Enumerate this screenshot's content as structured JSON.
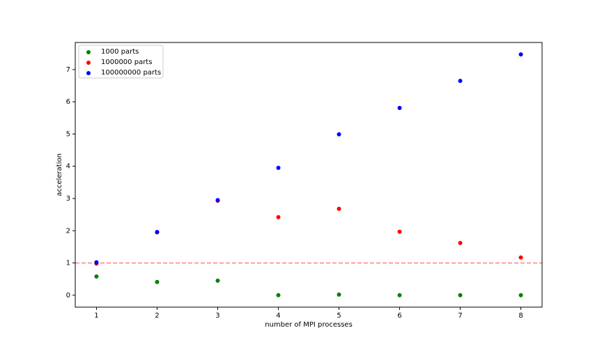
{
  "chart_data": {
    "type": "scatter",
    "xlabel": "number of MPI processes",
    "ylabel": "acceleration",
    "xlim": [
      0.65,
      8.35
    ],
    "ylim": [
      -0.37,
      7.84
    ],
    "xticks": [
      1,
      2,
      3,
      4,
      5,
      6,
      7,
      8
    ],
    "yticks": [
      0,
      1,
      2,
      3,
      4,
      5,
      6,
      7
    ],
    "legend": "upper left",
    "reference_line": {
      "y": 1,
      "color": "#ff8080"
    },
    "series": [
      {
        "name": "1000 parts",
        "color": "green",
        "x": [
          1,
          2,
          3,
          4,
          5,
          6,
          7,
          8
        ],
        "values": [
          0.58,
          0.41,
          0.45,
          0.0,
          0.02,
          0.0,
          0.0,
          0.0
        ]
      },
      {
        "name": "1000000 parts",
        "color": "red",
        "x": [
          1,
          2,
          3,
          4,
          5,
          6,
          7,
          8
        ],
        "values": [
          0.98,
          1.95,
          2.93,
          2.42,
          2.68,
          1.97,
          1.62,
          1.17
        ]
      },
      {
        "name": "100000000 parts",
        "color": "blue",
        "x": [
          1,
          2,
          3,
          4,
          5,
          6,
          7,
          8
        ],
        "values": [
          1.02,
          1.96,
          2.95,
          3.95,
          4.99,
          5.81,
          6.65,
          7.47
        ]
      }
    ]
  }
}
